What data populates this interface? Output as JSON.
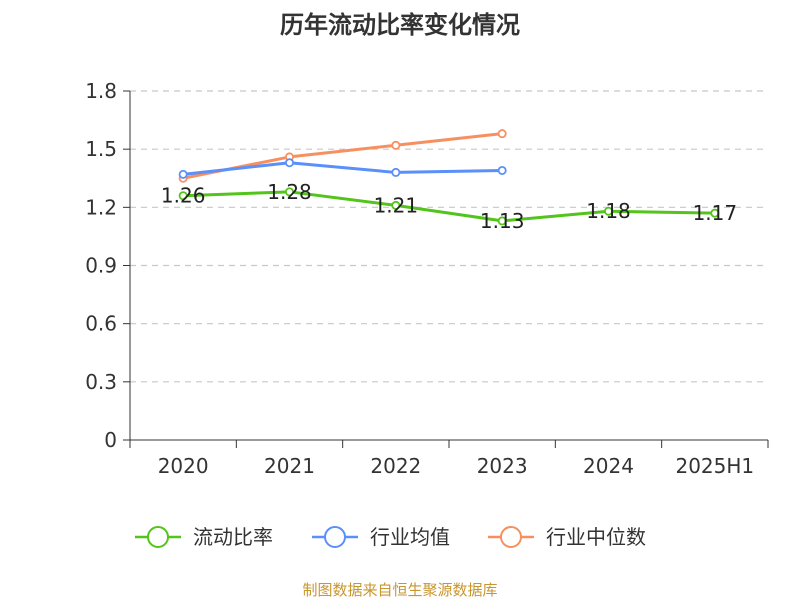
{
  "chart_data": {
    "type": "line",
    "title": "历年流动比率变化情况",
    "categories": [
      "2020",
      "2021",
      "2022",
      "2023",
      "2024",
      "2025H1"
    ],
    "ylim": [
      0,
      1.8
    ],
    "yticks": [
      "0",
      "0.3",
      "0.6",
      "0.9",
      "1.2",
      "1.5",
      "1.8"
    ],
    "grid": true,
    "legend_position": "bottom",
    "series": [
      {
        "name": "流动比率",
        "color": "#52c41a",
        "values": [
          1.26,
          1.28,
          1.21,
          1.13,
          1.18,
          1.17
        ],
        "labels": [
          "1.26",
          "1.28",
          "1.21",
          "1.13",
          "1.18",
          "1.17"
        ]
      },
      {
        "name": "行业均值",
        "color": "#5b8ff9",
        "values": [
          1.37,
          1.43,
          1.38,
          1.39,
          null,
          null
        ]
      },
      {
        "name": "行业中位数",
        "color": "#f79060",
        "values": [
          1.35,
          1.46,
          1.52,
          1.58,
          null,
          null
        ]
      }
    ]
  },
  "source": "制图数据来自恒生聚源数据库"
}
